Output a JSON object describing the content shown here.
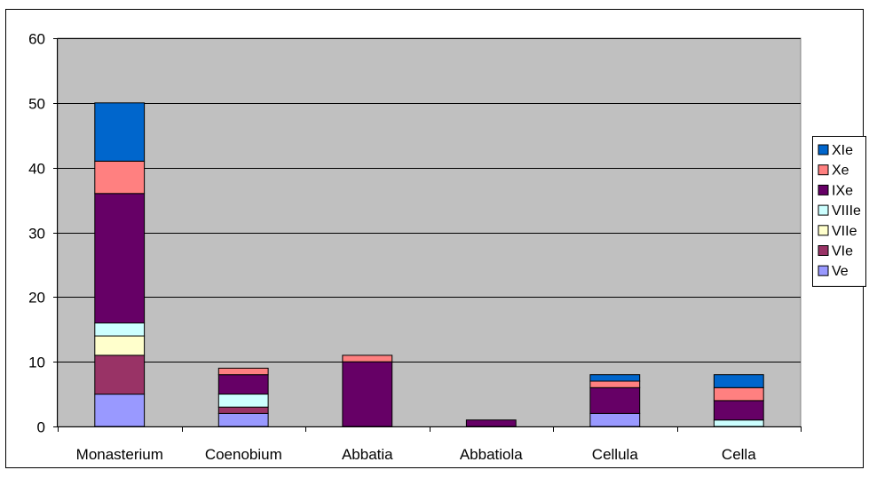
{
  "chart_data": {
    "type": "bar",
    "stacked": true,
    "categories": [
      "Monasterium",
      "Coenobium",
      "Abbatia",
      "Abbatiola",
      "Cellula",
      "Cella"
    ],
    "series": [
      {
        "name": "Ve",
        "color": "#9999ff",
        "values": [
          5,
          2,
          0,
          0,
          2,
          0
        ]
      },
      {
        "name": "VIe",
        "color": "#993366",
        "values": [
          6,
          1,
          0,
          0,
          0,
          0
        ]
      },
      {
        "name": "VIIe",
        "color": "#ffffcc",
        "values": [
          3,
          0,
          0,
          0,
          0,
          0
        ]
      },
      {
        "name": "VIIIe",
        "color": "#ccffff",
        "values": [
          2,
          2,
          0,
          0,
          0,
          1
        ]
      },
      {
        "name": "IXe",
        "color": "#660066",
        "values": [
          20,
          3,
          10,
          1,
          4,
          3
        ]
      },
      {
        "name": "Xe",
        "color": "#ff8080",
        "values": [
          5,
          1,
          1,
          0,
          1,
          2
        ]
      },
      {
        "name": "XIe",
        "color": "#0066cc",
        "values": [
          9,
          0,
          0,
          0,
          1,
          2
        ]
      }
    ],
    "ylim": [
      0,
      60
    ],
    "yticks": [
      0,
      10,
      20,
      30,
      40,
      50,
      60
    ],
    "grid": true,
    "plot_background": "#c0c0c0",
    "legend_position": "right",
    "title": "",
    "xlabel": "",
    "ylabel": ""
  }
}
